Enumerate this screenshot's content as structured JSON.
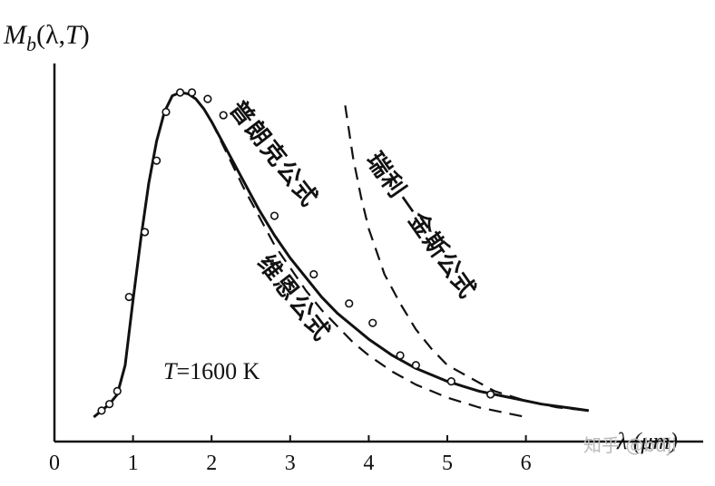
{
  "chart_data": {
    "type": "line",
    "ylabel": "M_b(λ,T)",
    "xlabel": "λ (μm)",
    "x_ticks": [
      "0",
      "1",
      "2",
      "3",
      "4",
      "5",
      "6"
    ],
    "xlim": [
      0,
      7
    ],
    "ylim": [
      0,
      1
    ],
    "annotation": "T=1600 K",
    "series": [
      {
        "name": "普朗克公式",
        "style": "solid",
        "x": [
          0.5,
          0.7,
          0.8,
          0.9,
          1.0,
          1.1,
          1.2,
          1.3,
          1.4,
          1.5,
          1.6,
          1.7,
          1.8,
          1.9,
          2.0,
          2.2,
          2.4,
          2.6,
          2.8,
          3.0,
          3.2,
          3.4,
          3.6,
          3.8,
          4.0,
          4.3,
          4.6,
          5.0,
          5.4,
          5.8,
          6.2,
          6.5,
          6.8
        ],
        "y": [
          0.0,
          0.04,
          0.07,
          0.16,
          0.36,
          0.55,
          0.72,
          0.85,
          0.94,
          0.99,
          1.0,
          0.996,
          0.98,
          0.95,
          0.91,
          0.82,
          0.73,
          0.64,
          0.56,
          0.49,
          0.43,
          0.37,
          0.32,
          0.28,
          0.24,
          0.19,
          0.15,
          0.11,
          0.08,
          0.06,
          0.04,
          0.03,
          0.02
        ]
      },
      {
        "name": "维恩公式",
        "style": "dashed",
        "x": [
          2.0,
          2.2,
          2.4,
          2.6,
          2.8,
          3.0,
          3.2,
          3.4,
          3.6,
          3.8,
          4.0,
          4.3,
          4.6,
          5.0,
          5.4,
          5.8,
          6.0
        ],
        "y": [
          0.91,
          0.81,
          0.71,
          0.62,
          0.53,
          0.46,
          0.39,
          0.33,
          0.28,
          0.23,
          0.19,
          0.14,
          0.1,
          0.06,
          0.03,
          0.01,
          0.0
        ]
      },
      {
        "name": "瑞利－金斯公式",
        "style": "dashed",
        "x": [
          3.7,
          3.8,
          3.9,
          4.0,
          4.2,
          4.4,
          4.6,
          4.8,
          5.0,
          5.3,
          5.6,
          6.0,
          6.4,
          6.8
        ],
        "y": [
          0.96,
          0.8,
          0.68,
          0.58,
          0.44,
          0.35,
          0.27,
          0.21,
          0.16,
          0.12,
          0.08,
          0.05,
          0.03,
          0.02
        ]
      }
    ],
    "measured_points": {
      "x": [
        0.6,
        0.7,
        0.8,
        0.95,
        1.15,
        1.3,
        1.42,
        1.6,
        1.75,
        1.95,
        2.15,
        2.8,
        3.3,
        3.75,
        4.05,
        4.4,
        4.6,
        5.05,
        5.55
      ],
      "y": [
        0.02,
        0.04,
        0.08,
        0.37,
        0.57,
        0.79,
        0.94,
        1.0,
        1.0,
        0.98,
        0.93,
        0.62,
        0.44,
        0.35,
        0.29,
        0.19,
        0.16,
        0.11,
        0.07
      ]
    }
  },
  "watermark": "知乎 @bdji"
}
